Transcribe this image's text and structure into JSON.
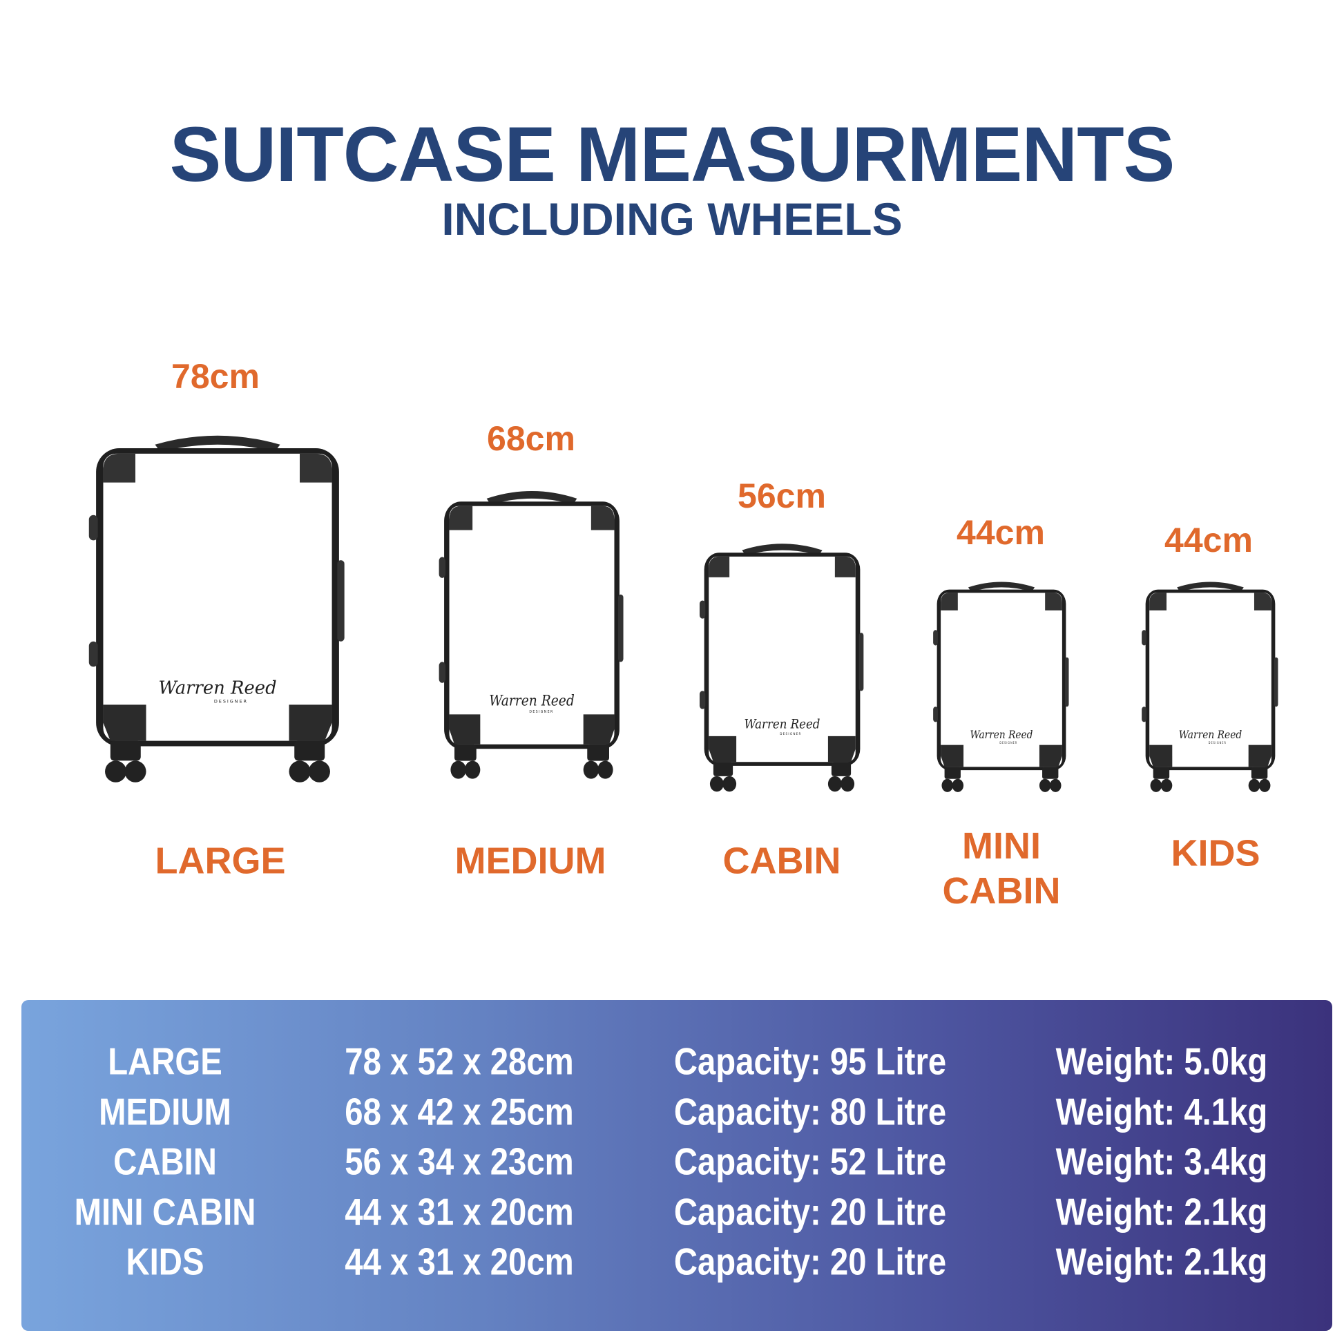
{
  "header": {
    "title": "SUITCASE MEASURMENTS",
    "subtitle": "INCLUDING WHEELS"
  },
  "colors": {
    "title": "#264478",
    "accent": "#e0692c",
    "panel_gradient": [
      "#79a4dd",
      "#3b327c"
    ]
  },
  "brand_logo": "Warren Reed DESIGNER",
  "suitcases": [
    {
      "name": "LARGE",
      "height": "78cm"
    },
    {
      "name": "MEDIUM",
      "height": "68cm"
    },
    {
      "name": "CABIN",
      "height": "56cm"
    },
    {
      "name_lines": [
        "MINI",
        "CABIN"
      ],
      "height": "44cm"
    },
    {
      "name": "KIDS",
      "height": "44cm"
    }
  ],
  "specs": [
    {
      "name": "LARGE",
      "dimensions": "78 x 52 x 28cm",
      "capacity": "Capacity: 95 Litre",
      "weight": "Weight: 5.0kg"
    },
    {
      "name": "MEDIUM",
      "dimensions": "68 x 42 x 25cm",
      "capacity": "Capacity: 80 Litre",
      "weight": "Weight: 4.1kg"
    },
    {
      "name": "CABIN",
      "dimensions": "56 x 34 x 23cm",
      "capacity": "Capacity: 52 Litre",
      "weight": "Weight: 3.4kg"
    },
    {
      "name": "MINI CABIN",
      "dimensions": "44 x 31 x 20cm",
      "capacity": "Capacity: 20 Litre",
      "weight": "Weight: 2.1kg"
    },
    {
      "name": "KIDS",
      "dimensions": "44 x 31 x 20cm",
      "capacity": "Capacity: 20 Litre",
      "weight": "Weight: 2.1kg"
    }
  ]
}
